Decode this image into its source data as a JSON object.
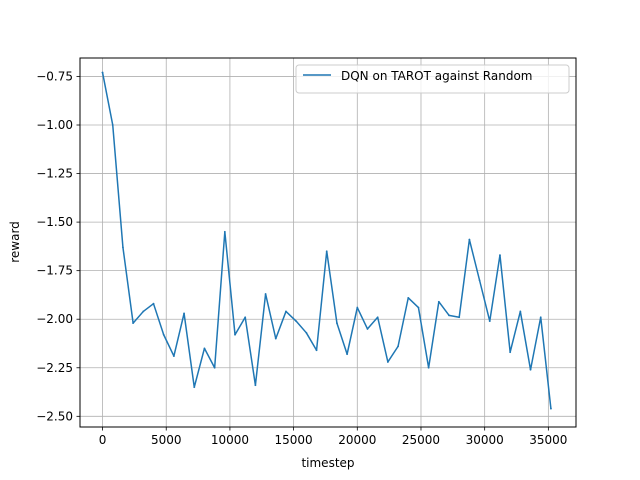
{
  "chart_data": {
    "type": "line",
    "title": "",
    "xlabel": "timestep",
    "ylabel": "reward",
    "xlim": [
      -1770,
      37170
    ],
    "ylim": [
      -2.555,
      -0.655
    ],
    "x_ticks": [
      0,
      5000,
      10000,
      15000,
      20000,
      25000,
      30000,
      35000
    ],
    "x_tick_labels": [
      "0",
      "5000",
      "10000",
      "15000",
      "20000",
      "25000",
      "30000",
      "35000"
    ],
    "y_ticks": [
      -0.75,
      -1.0,
      -1.25,
      -1.5,
      -1.75,
      -2.0,
      -2.25,
      -2.5
    ],
    "y_tick_labels": [
      "−0.75",
      "−1.00",
      "−1.25",
      "−1.50",
      "−1.75",
      "−2.00",
      "−2.25",
      "−2.50"
    ],
    "grid": true,
    "legend_position": "top-right",
    "series": [
      {
        "name": "DQN on TAROT against Random",
        "color": "#1f77b4",
        "x": [
          0,
          800,
          1600,
          2400,
          3200,
          4000,
          4800,
          5600,
          6400,
          7200,
          8000,
          8800,
          9600,
          10400,
          11200,
          12000,
          12800,
          13600,
          14400,
          15200,
          16000,
          16800,
          17600,
          18400,
          19200,
          20000,
          20800,
          21600,
          22400,
          23200,
          24000,
          24800,
          25600,
          26400,
          27200,
          28000,
          28800,
          29600,
          30400,
          31200,
          32000,
          32800,
          33600,
          34400,
          35200
        ],
        "y": [
          -0.73,
          -1.0,
          -1.63,
          -2.02,
          -1.96,
          -1.92,
          -2.08,
          -2.19,
          -1.97,
          -2.35,
          -2.15,
          -2.25,
          -1.55,
          -2.08,
          -1.99,
          -2.34,
          -1.87,
          -2.1,
          -1.96,
          -2.01,
          -2.07,
          -2.16,
          -1.65,
          -2.02,
          -2.18,
          -1.94,
          -2.05,
          -1.99,
          -2.22,
          -2.14,
          -1.89,
          -1.94,
          -2.25,
          -1.91,
          -1.98,
          -1.99,
          -1.59,
          -1.8,
          -2.01,
          -1.67,
          -2.17,
          -1.96,
          -2.26,
          -1.99,
          -2.46
        ]
      }
    ]
  }
}
